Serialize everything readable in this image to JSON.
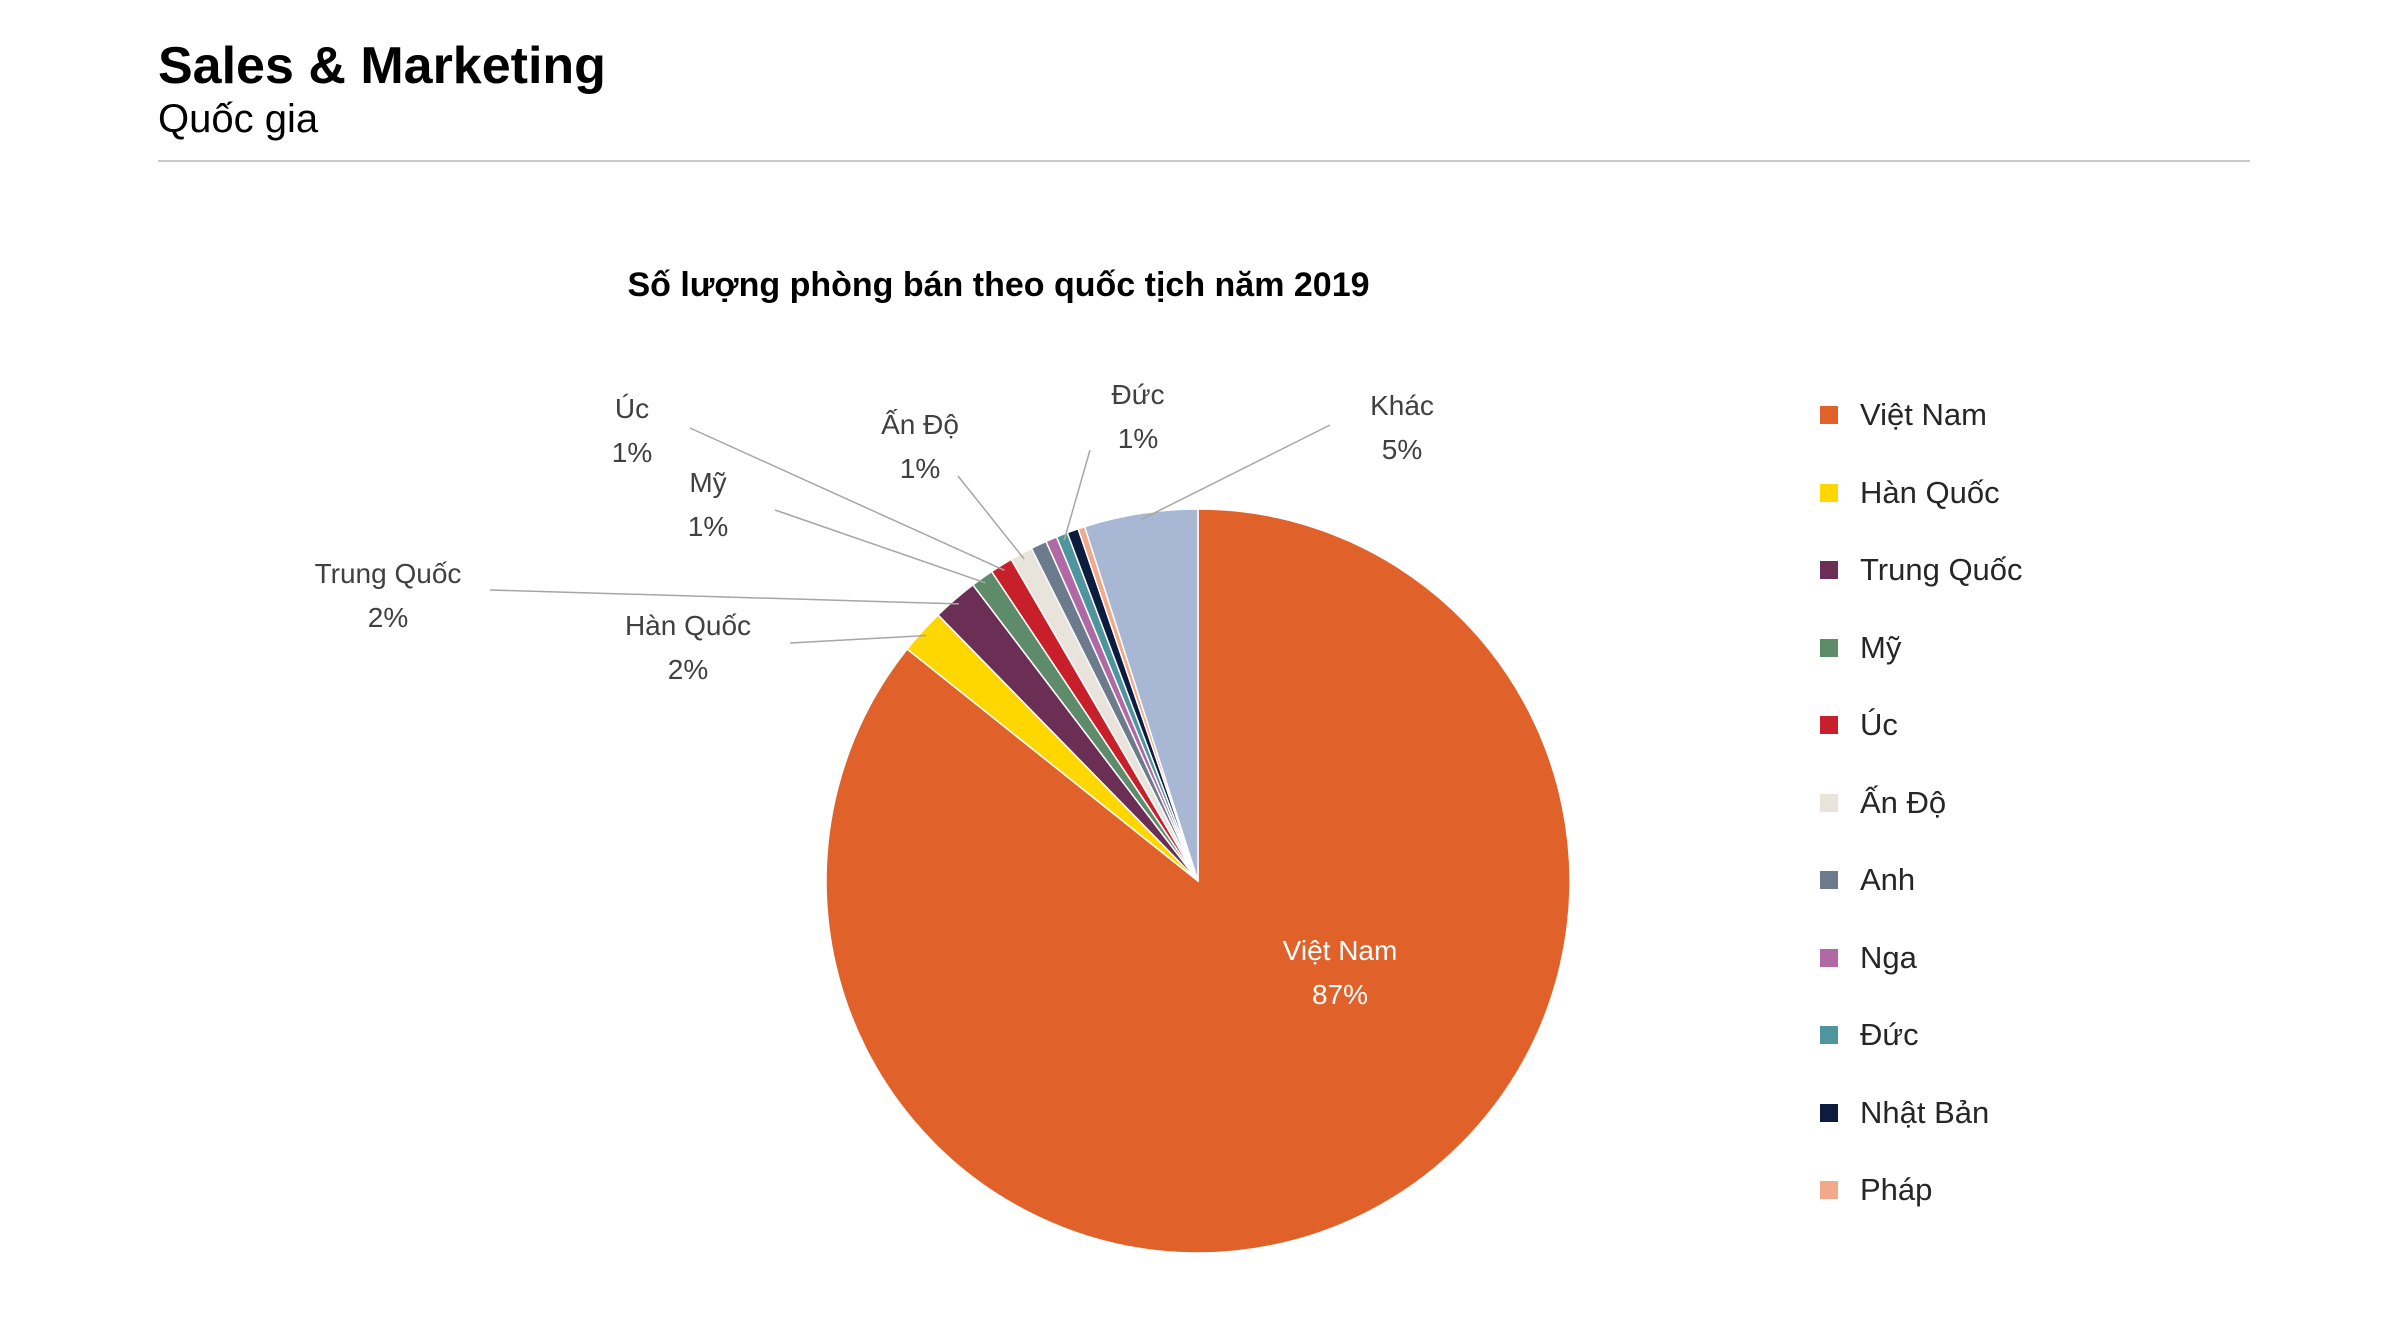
{
  "header": {
    "title": "Sales & Marketing",
    "subtitle": "Quốc gia"
  },
  "chart_data": {
    "type": "pie",
    "title": "Số lượng phòng bán theo quốc tịch năm 2019",
    "legend_position": "right",
    "slices": [
      {
        "name": "Việt Nam",
        "value": 87,
        "label": "87%",
        "color": "#E0622A",
        "labeled": true
      },
      {
        "name": "Hàn Quốc",
        "value": 2,
        "label": "2%",
        "color": "#FFD700",
        "labeled": true
      },
      {
        "name": "Trung Quốc",
        "value": 2,
        "label": "2%",
        "color": "#6B2F55",
        "labeled": true
      },
      {
        "name": "Mỹ",
        "value": 1,
        "label": "1%",
        "color": "#5E8C6A",
        "labeled": true
      },
      {
        "name": "Úc",
        "value": 1,
        "label": "1%",
        "color": "#C8202A",
        "labeled": true
      },
      {
        "name": "Ấn Độ",
        "value": 1,
        "label": "1%",
        "color": "#E8E4DC",
        "labeled": true
      },
      {
        "name": "Anh",
        "value": 0.7,
        "label": "",
        "color": "#6B7B8C",
        "labeled": false
      },
      {
        "name": "Nga",
        "value": 0.5,
        "label": "",
        "color": "#B069A4",
        "labeled": false
      },
      {
        "name": "Đức",
        "value": 0.5,
        "label": "1%",
        "color": "#4E959D",
        "labeled": true
      },
      {
        "name": "Nhật Bản",
        "value": 0.5,
        "label": "",
        "color": "#0D1B3E",
        "labeled": false
      },
      {
        "name": "Pháp",
        "value": 0.3,
        "label": "",
        "color": "#F2A98A",
        "labeled": false
      },
      {
        "name": "Khác",
        "value": 5,
        "label": "5%",
        "color": "#A8B7D4",
        "labeled": true
      }
    ],
    "legend": [
      "Việt Nam",
      "Hàn Quốc",
      "Trung Quốc",
      "Mỹ",
      "Úc",
      "Ấn Độ",
      "Anh",
      "Nga",
      "Đức",
      "Nhật Bản",
      "Pháp"
    ]
  }
}
